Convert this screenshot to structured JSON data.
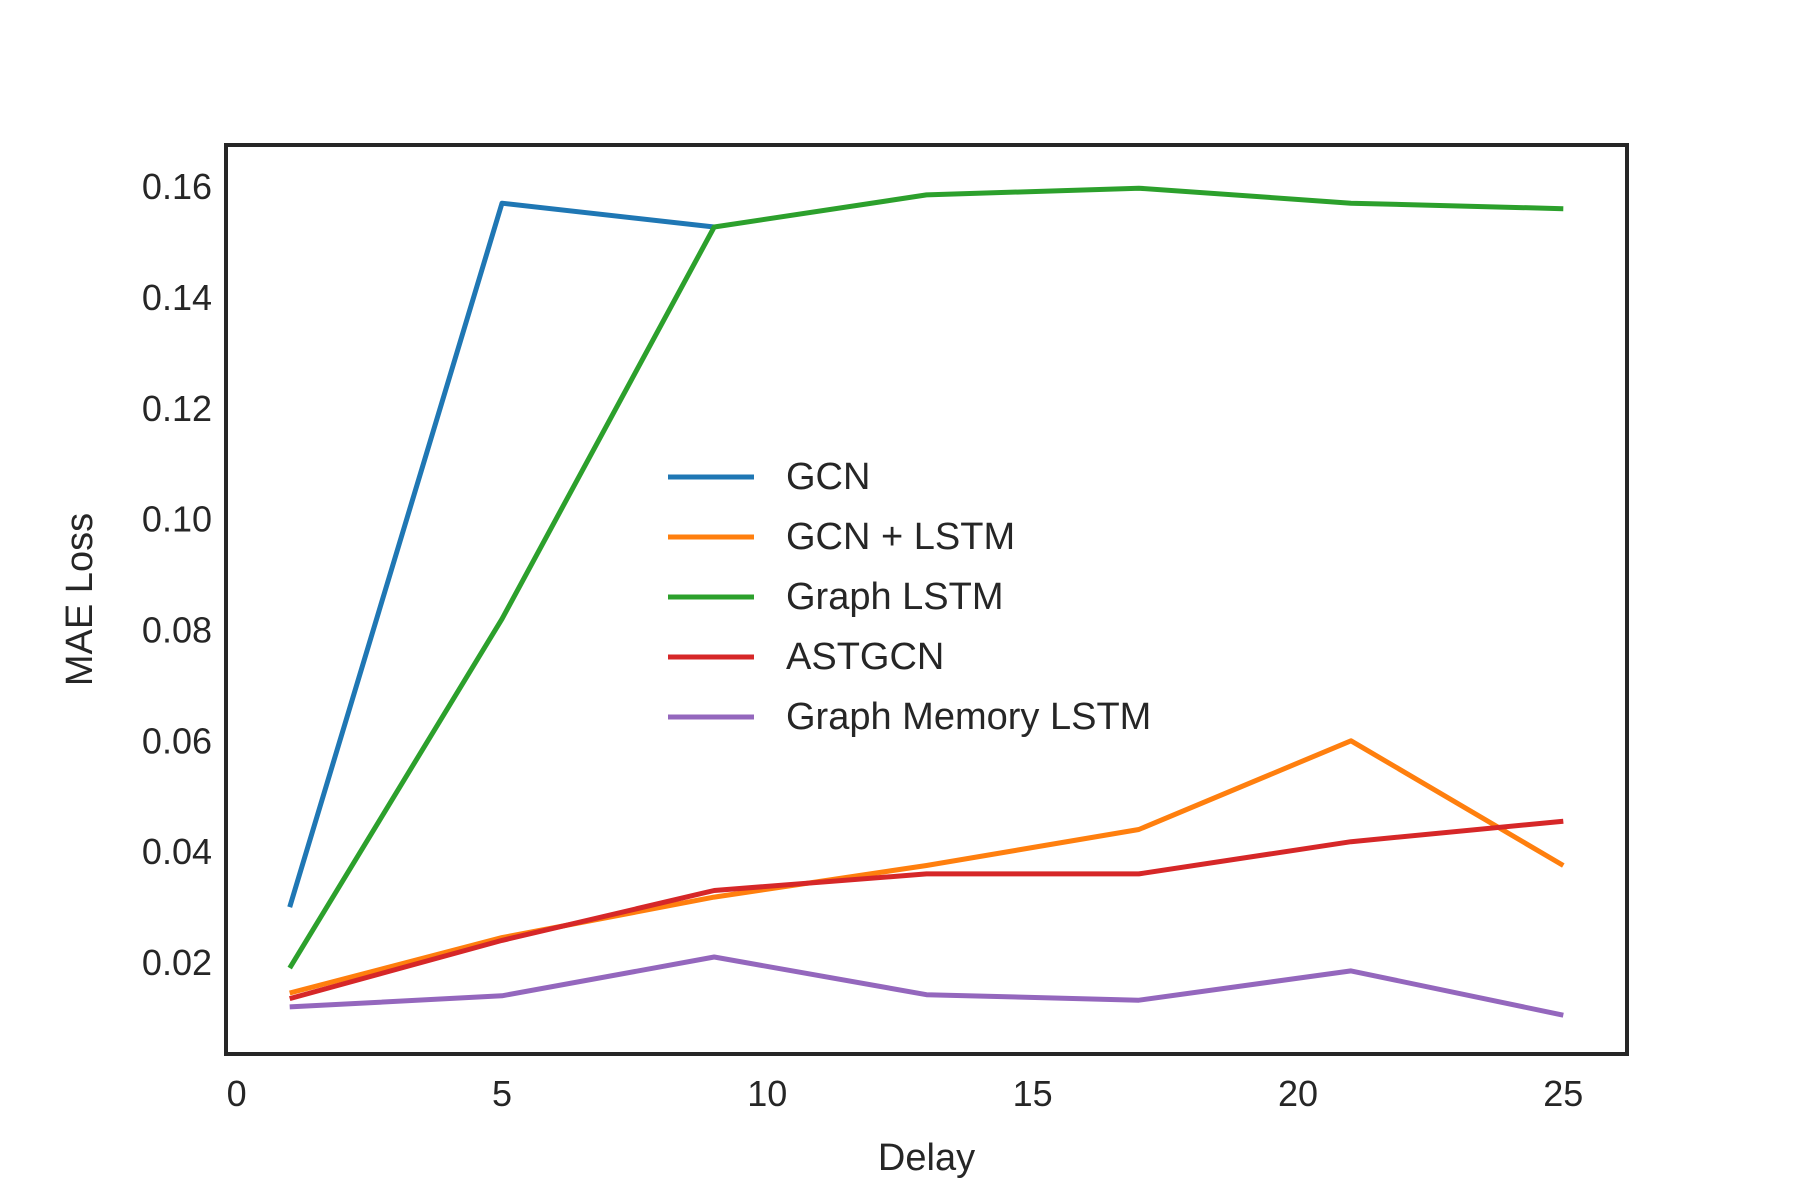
{
  "chart_data": {
    "type": "line",
    "xlabel": "Delay",
    "ylabel": "MAE Loss",
    "xlim": [
      -0.2,
      26.2
    ],
    "ylim": [
      0.0035,
      0.1675
    ],
    "xticks": [
      0,
      5,
      10,
      15,
      20,
      25
    ],
    "xtick_labels": [
      "0",
      "5",
      "10",
      "15",
      "20",
      "25"
    ],
    "yticks": [
      0.02,
      0.04,
      0.06,
      0.08,
      0.1,
      0.12,
      0.14,
      0.16
    ],
    "ytick_labels": [
      "0.02",
      "0.04",
      "0.06",
      "0.08",
      "0.10",
      "0.12",
      "0.14",
      "0.16"
    ],
    "grid": false,
    "legend_position": "center",
    "x": [
      1,
      5,
      9,
      13,
      17,
      21,
      25
    ],
    "series": [
      {
        "name": "GCN",
        "color": "#1f77b4",
        "x": [
          1,
          5,
          9
        ],
        "values": [
          0.03,
          0.157,
          0.1527
        ]
      },
      {
        "name": "GCN + LSTM",
        "color": "#ff7f0e",
        "values": [
          0.0145,
          0.0245,
          0.0318,
          0.0375,
          0.044,
          0.06,
          0.0375
        ]
      },
      {
        "name": "Graph LSTM",
        "color": "#2ca02c",
        "values": [
          0.019,
          0.082,
          0.1527,
          0.1585,
          0.1597,
          0.157,
          0.156
        ]
      },
      {
        "name": "ASTGCN",
        "color": "#d62728",
        "values": [
          0.0135,
          0.024,
          0.033,
          0.036,
          0.036,
          0.0418,
          0.0455
        ]
      },
      {
        "name": "Graph Memory LSTM",
        "color": "#9467bd",
        "values": [
          0.012,
          0.014,
          0.021,
          0.0142,
          0.0132,
          0.0185,
          0.0105
        ]
      }
    ]
  }
}
